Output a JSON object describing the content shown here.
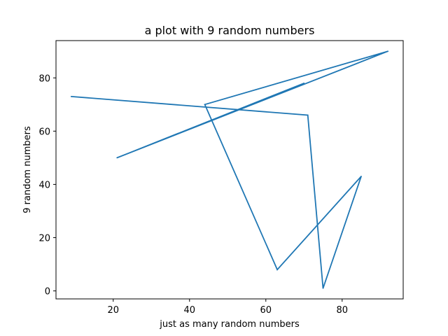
{
  "chart_data": {
    "type": "line",
    "title": "a plot with 9 random numbers",
    "xlabel": "just as many random numbers",
    "ylabel": "9 random numbers",
    "xlim": [
      5,
      96
    ],
    "ylim": [
      -3,
      94
    ],
    "xticks": [
      20,
      40,
      60,
      80
    ],
    "yticks": [
      0,
      20,
      40,
      60,
      80
    ],
    "grid": false,
    "series": [
      {
        "color": "#1f77b4",
        "x": [
          70,
          21,
          92,
          44,
          63,
          85,
          75,
          71,
          9
        ],
        "y": [
          78,
          50,
          90,
          70,
          8,
          43,
          1,
          66,
          73
        ]
      }
    ]
  }
}
